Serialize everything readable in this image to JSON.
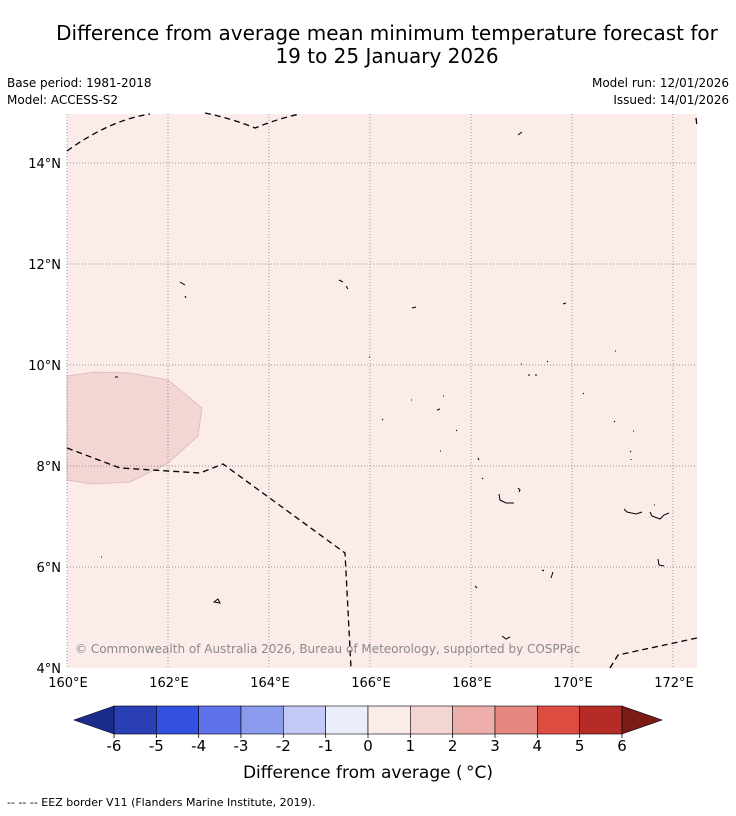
{
  "title": {
    "line1": "Difference from average mean minimum temperature forecast for",
    "line2": "19 to 25 January 2026"
  },
  "meta": {
    "base_period": "Base period: 1981-2018",
    "model": "Model: ACCESS-S2",
    "model_run": "Model run: 12/01/2026",
    "issued": "Issued: 14/01/2026"
  },
  "map": {
    "lat_labels": [
      "14°N",
      "12°N",
      "10°N",
      "8°N",
      "6°N",
      "4°N"
    ],
    "lon_labels": [
      "160°E",
      "162°E",
      "164°E",
      "166°E",
      "168°E",
      "170°E",
      "172°E"
    ],
    "background_color": "#fbebe9",
    "anomaly_patch_color": "#f3d6d4",
    "copyright": "© Commonwealth of Australia 2026, Bureau of Meteorology, supported by COSPPac"
  },
  "colorbar": {
    "ticks": [
      "-6",
      "-5",
      "-4",
      "-3",
      "-2",
      "-1",
      "0",
      "1",
      "2",
      "3",
      "4",
      "5",
      "6"
    ],
    "colors": [
      "#1c2c8c",
      "#2b3fb5",
      "#3350e0",
      "#5d72e8",
      "#8a9bee",
      "#c2c9f6",
      "#eaedfc",
      "#fbebe9",
      "#f3d5d4",
      "#eeaeab",
      "#e68681",
      "#dc4c41",
      "#b42c25",
      "#7a1d19"
    ],
    "label": "Difference from average ( °C)"
  },
  "footnote": "-- -- -- EEZ border V11 (Flanders Marine Institute, 2019)."
}
